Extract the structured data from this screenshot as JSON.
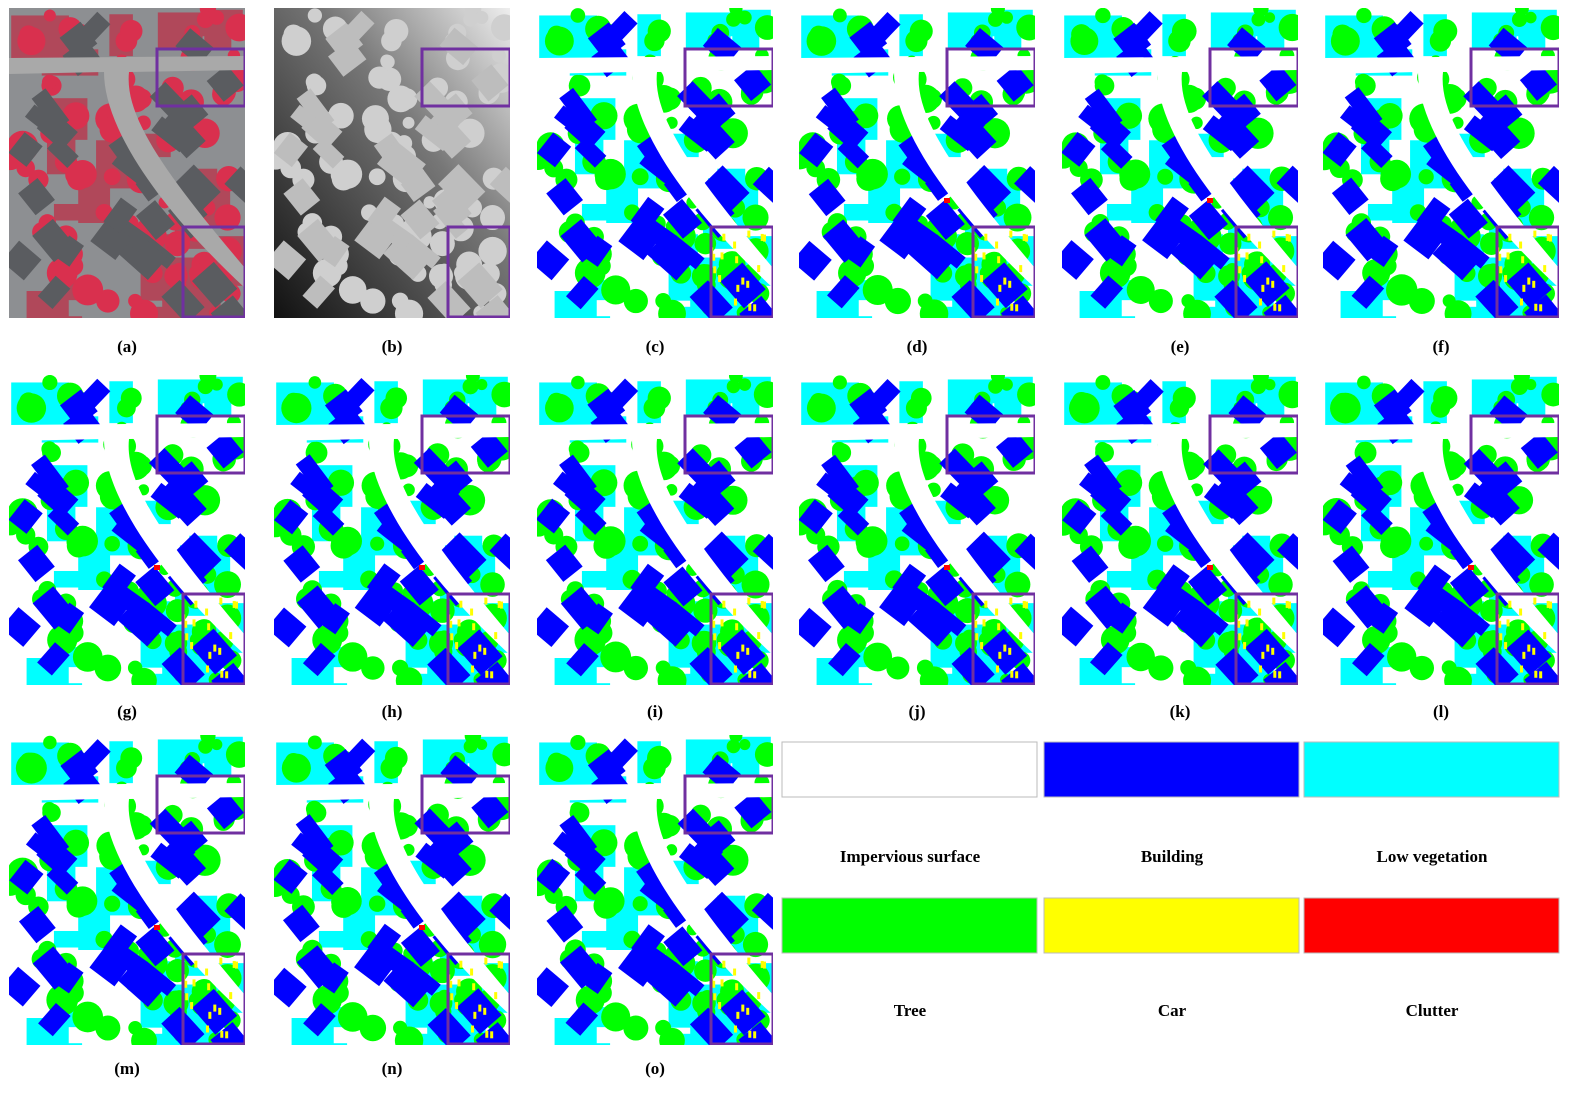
{
  "panels": [
    {
      "label": "(a)"
    },
    {
      "label": "(b)"
    },
    {
      "label": "(c)"
    },
    {
      "label": "(d)"
    },
    {
      "label": "(e)"
    },
    {
      "label": "(f)"
    },
    {
      "label": "(g)"
    },
    {
      "label": "(h)"
    },
    {
      "label": "(i)"
    },
    {
      "label": "(j)"
    },
    {
      "label": "(k)"
    },
    {
      "label": "(l)"
    },
    {
      "label": "(m)"
    },
    {
      "label": "(n)"
    },
    {
      "label": "(o)"
    }
  ],
  "legend": [
    {
      "label": "Impervious surface",
      "color": "#ffffff"
    },
    {
      "label": "Building",
      "color": "#0000ff"
    },
    {
      "label": "Low vegetation",
      "color": "#00ffff"
    },
    {
      "label": "Tree",
      "color": "#00ff00"
    },
    {
      "label": "Car",
      "color": "#ffff00"
    },
    {
      "label": "Clutter",
      "color": "#ff0000"
    }
  ]
}
